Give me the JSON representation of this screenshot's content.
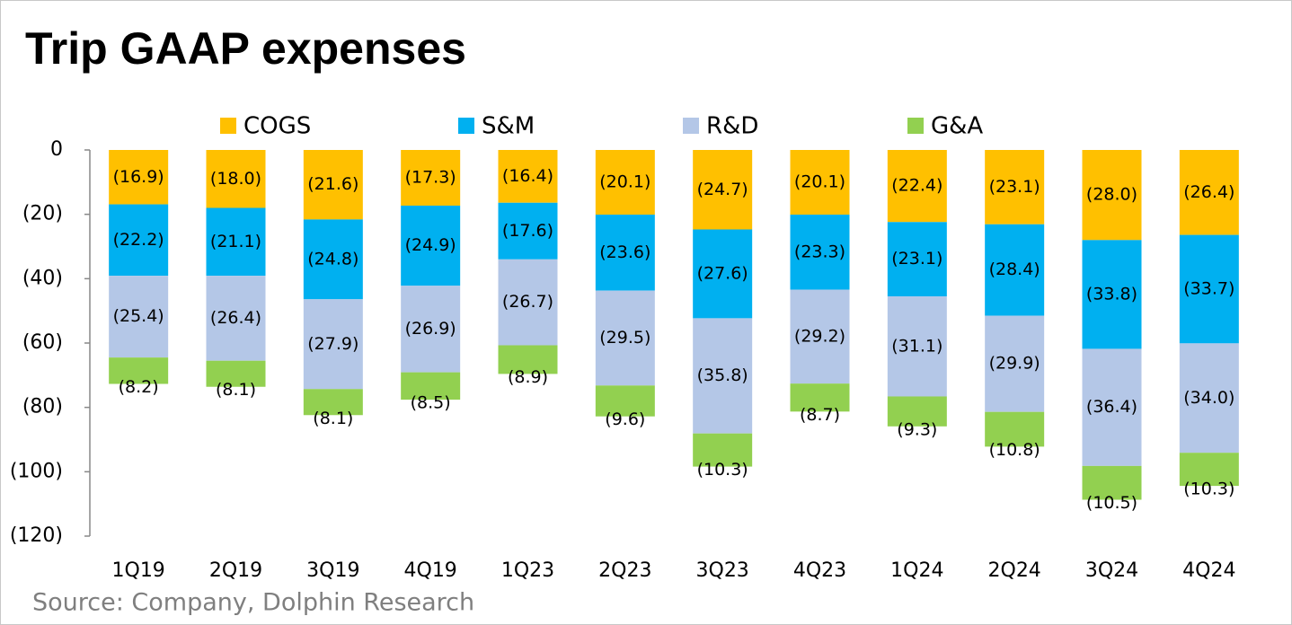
{
  "chart_data": {
    "type": "stacked_bar",
    "title": "Trip GAAP expenses",
    "source": "Source: Company, Dolphin Research",
    "categories": [
      "1Q19",
      "2Q19",
      "3Q19",
      "4Q19",
      "1Q23",
      "2Q23",
      "3Q23",
      "4Q23",
      "1Q24",
      "2Q24",
      "3Q24",
      "4Q24"
    ],
    "series": [
      {
        "name": "COGS",
        "color": "#FFC000",
        "values": [
          -16.9,
          -18.0,
          -21.6,
          -17.3,
          -16.4,
          -20.1,
          -24.7,
          -20.1,
          -22.4,
          -23.1,
          -28.0,
          -26.4
        ],
        "value_labels": [
          "(16.9)",
          "(18.0)",
          "(21.6)",
          "(17.3)",
          "(16.4)",
          "(20.1)",
          "(24.7)",
          "(20.1)",
          "(22.4)",
          "(23.1)",
          "(28.0)",
          "(26.4)"
        ]
      },
      {
        "name": "S&M",
        "color": "#00B0F0",
        "values": [
          -22.2,
          -21.1,
          -24.8,
          -24.9,
          -17.6,
          -23.6,
          -27.6,
          -23.3,
          -23.1,
          -28.4,
          -33.8,
          -33.7
        ],
        "value_labels": [
          "(22.2)",
          "(21.1)",
          "(24.8)",
          "(24.9)",
          "(17.6)",
          "(23.6)",
          "(27.6)",
          "(23.3)",
          "(23.1)",
          "(28.4)",
          "(33.8)",
          "(33.7)"
        ]
      },
      {
        "name": "R&D",
        "color": "#B4C7E7",
        "values": [
          -25.4,
          -26.4,
          -27.9,
          -26.9,
          -26.7,
          -29.5,
          -35.8,
          -29.2,
          -31.1,
          -29.9,
          -36.4,
          -34.0
        ],
        "value_labels": [
          "(25.4)",
          "(26.4)",
          "(27.9)",
          "(26.9)",
          "(26.7)",
          "(29.5)",
          "(35.8)",
          "(29.2)",
          "(31.1)",
          "(29.9)",
          "(36.4)",
          "(34.0)"
        ]
      },
      {
        "name": "G&A",
        "color": "#92D050",
        "values": [
          -8.2,
          -8.1,
          -8.1,
          -8.5,
          -8.9,
          -9.6,
          -10.3,
          -8.7,
          -9.3,
          -10.8,
          -10.5,
          -10.3
        ],
        "value_labels": [
          "(8.2)",
          "(8.1)",
          "(8.1)",
          "(8.5)",
          "(8.9)",
          "(9.6)",
          "(10.3)",
          "(8.7)",
          "(9.3)",
          "(10.8)",
          "(10.5)",
          "(10.3)"
        ]
      }
    ],
    "ylim": [
      -120,
      0
    ],
    "yticks": [
      0,
      {
        "value": -20,
        "label": "(20)"
      },
      {
        "value": -40,
        "label": "(40)"
      },
      {
        "value": -60,
        "label": "(60)"
      },
      {
        "value": -80,
        "label": "(80)"
      },
      {
        "value": -100,
        "label": "(100)"
      },
      {
        "value": -120,
        "label": "(120)"
      }
    ]
  }
}
